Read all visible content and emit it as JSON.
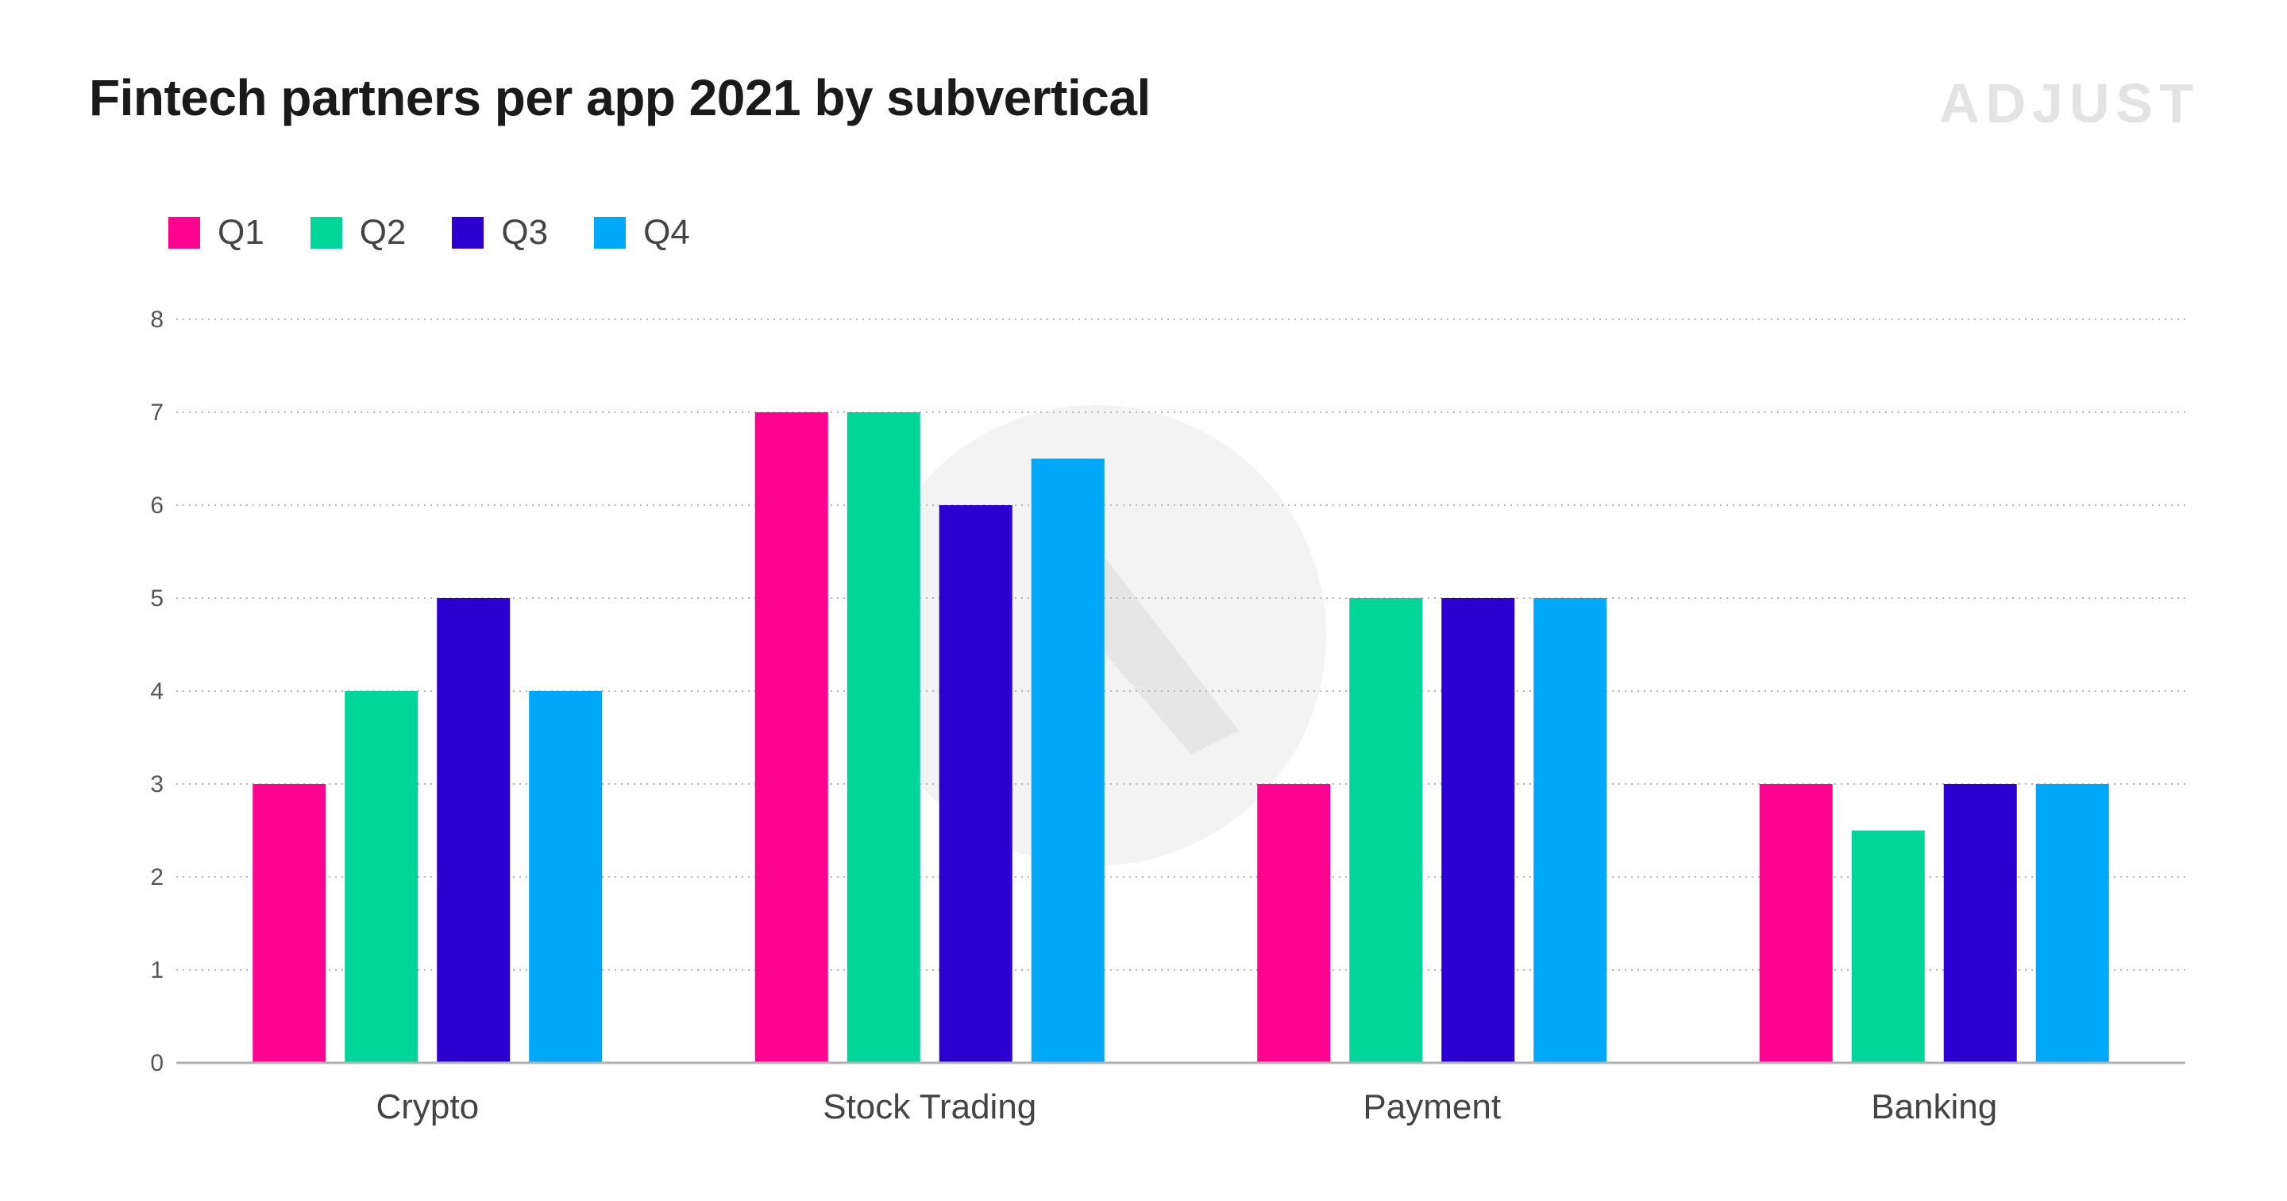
{
  "header": {
    "title": "Fintech partners per app 2021 by subvertical",
    "brand": "ADJUST"
  },
  "chart_data": {
    "type": "bar",
    "title": "Fintech partners per app 2021 by subvertical",
    "categories": [
      "Crypto",
      "Stock Trading",
      "Payment",
      "Banking"
    ],
    "series": [
      {
        "name": "Q1",
        "color": "#fc0390",
        "values": [
          3,
          7,
          3,
          3
        ]
      },
      {
        "name": "Q2",
        "color": "#00d69a",
        "values": [
          4,
          7,
          5,
          2.5
        ]
      },
      {
        "name": "Q3",
        "color": "#2d00d2",
        "values": [
          5,
          6,
          5,
          3
        ]
      },
      {
        "name": "Q4",
        "color": "#00a8fa",
        "values": [
          4,
          6.5,
          5,
          3
        ]
      }
    ],
    "xlabel": "",
    "ylabel": "",
    "ylim": [
      0,
      8
    ],
    "yticks": [
      0,
      1,
      2,
      3,
      4,
      5,
      6,
      7,
      8
    ],
    "grid": true,
    "legend_position": "top-left"
  }
}
